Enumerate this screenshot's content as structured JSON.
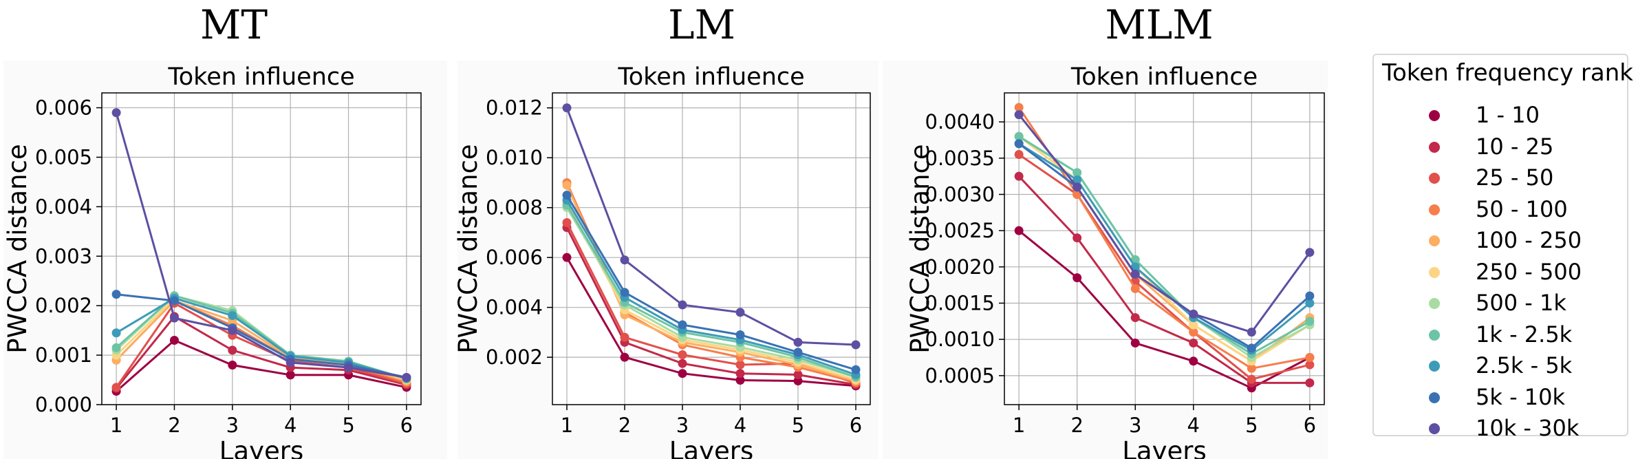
{
  "panel_titles": [
    "MT",
    "LM",
    "MLM"
  ],
  "legend": {
    "title": "Token frequency rank",
    "entries": [
      {
        "label": "1 - 10",
        "color": "#9e0142"
      },
      {
        "label": "10 - 25",
        "color": "#c2294a"
      },
      {
        "label": "25 - 50",
        "color": "#e1504a"
      },
      {
        "label": "50 - 100",
        "color": "#f67e4b"
      },
      {
        "label": "100 - 250",
        "color": "#fdae61"
      },
      {
        "label": "250 - 500",
        "color": "#fcd584"
      },
      {
        "label": "500 - 1k",
        "color": "#a8dca2"
      },
      {
        "label": "1k - 2.5k",
        "color": "#6cc4a4"
      },
      {
        "label": "2.5k - 5k",
        "color": "#3d9bb8"
      },
      {
        "label": "5k - 10k",
        "color": "#3a71b3"
      },
      {
        "label": "10k - 30k",
        "color": "#5e4fa2"
      }
    ]
  },
  "chart_data": [
    {
      "type": "line",
      "title": "Token influence",
      "xlabel": "Layers",
      "ylabel": "PWCCA distance",
      "x": [
        1,
        2,
        3,
        4,
        5,
        6
      ],
      "xlim": [
        0.75,
        6.25
      ],
      "ylim": [
        0,
        0.0063
      ],
      "yticks": [
        "0.000",
        "0.001",
        "0.002",
        "0.003",
        "0.004",
        "0.005",
        "0.006"
      ],
      "ytick_values": [
        0,
        0.001,
        0.002,
        0.003,
        0.004,
        0.005,
        0.006
      ],
      "grid": true,
      "series": [
        {
          "name": "1 - 10",
          "values": [
            0.00027,
            0.0013,
            0.0008,
            0.0006,
            0.0006,
            0.00035
          ]
        },
        {
          "name": "10 - 25",
          "values": [
            0.00033,
            0.00178,
            0.0011,
            0.00075,
            0.0007,
            0.0004
          ]
        },
        {
          "name": "25 - 50",
          "values": [
            0.00035,
            0.00205,
            0.0014,
            0.00088,
            0.00075,
            0.00042
          ]
        },
        {
          "name": "50 - 100",
          "values": [
            0.0009,
            0.0021,
            0.0016,
            0.00092,
            0.0008,
            0.00045
          ]
        },
        {
          "name": "100 - 250",
          "values": [
            0.0009,
            0.0021,
            0.0017,
            0.00095,
            0.00083,
            0.00048
          ]
        },
        {
          "name": "250 - 500",
          "values": [
            0.001,
            0.00215,
            0.0018,
            0.00098,
            0.00085,
            0.0005
          ]
        },
        {
          "name": "500 - 1k",
          "values": [
            0.0011,
            0.0022,
            0.0019,
            0.001,
            0.00088,
            0.00052
          ]
        },
        {
          "name": "1k - 2.5k",
          "values": [
            0.00115,
            0.0022,
            0.00185,
            0.001,
            0.00087,
            0.00052
          ]
        },
        {
          "name": "2.5k - 5k",
          "values": [
            0.00145,
            0.00215,
            0.0018,
            0.00098,
            0.00085,
            0.00053
          ]
        },
        {
          "name": "5k - 10k",
          "values": [
            0.00223,
            0.0021,
            0.00155,
            0.00092,
            0.0008,
            0.00055
          ]
        },
        {
          "name": "10k - 30k",
          "values": [
            0.0059,
            0.00175,
            0.0015,
            0.00085,
            0.00075,
            0.00055
          ]
        }
      ]
    },
    {
      "type": "line",
      "title": "Token influence",
      "xlabel": "Layers",
      "ylabel": "PWCCA distance",
      "x": [
        1,
        2,
        3,
        4,
        5,
        6
      ],
      "xlim": [
        0.75,
        6.25
      ],
      "ylim": [
        0.0001,
        0.0126
      ],
      "yticks": [
        "0.002",
        "0.004",
        "0.006",
        "0.008",
        "0.010",
        "0.012"
      ],
      "ytick_values": [
        0.002,
        0.004,
        0.006,
        0.008,
        0.01,
        0.012
      ],
      "grid": true,
      "series": [
        {
          "name": "1 - 10",
          "values": [
            0.006,
            0.002,
            0.00135,
            0.00108,
            0.00105,
            0.00085
          ]
        },
        {
          "name": "10 - 25",
          "values": [
            0.0072,
            0.0026,
            0.00175,
            0.00135,
            0.0013,
            0.0009
          ]
        },
        {
          "name": "25 - 50",
          "values": [
            0.0074,
            0.0028,
            0.0021,
            0.0017,
            0.00175,
            0.00095
          ]
        },
        {
          "name": "50 - 100",
          "values": [
            0.009,
            0.0038,
            0.0025,
            0.002,
            0.0016,
            0.001
          ]
        },
        {
          "name": "100 - 250",
          "values": [
            0.0089,
            0.0037,
            0.0026,
            0.0022,
            0.0017,
            0.00105
          ]
        },
        {
          "name": "250 - 500",
          "values": [
            0.0082,
            0.0039,
            0.0027,
            0.0023,
            0.0018,
            0.0011
          ]
        },
        {
          "name": "500 - 1k",
          "values": [
            0.008,
            0.0041,
            0.0028,
            0.0024,
            0.0019,
            0.0012
          ]
        },
        {
          "name": "1k - 2.5k",
          "values": [
            0.0081,
            0.0042,
            0.003,
            0.0026,
            0.002,
            0.0012
          ]
        },
        {
          "name": "2.5k - 5k",
          "values": [
            0.0083,
            0.0044,
            0.0031,
            0.0027,
            0.0021,
            0.0013
          ]
        },
        {
          "name": "5k - 10k",
          "values": [
            0.0085,
            0.0046,
            0.0033,
            0.0029,
            0.0022,
            0.0015
          ]
        },
        {
          "name": "10k - 30k",
          "values": [
            0.012,
            0.0059,
            0.0041,
            0.0038,
            0.0026,
            0.0025
          ]
        }
      ]
    },
    {
      "type": "line",
      "title": "Token influence",
      "xlabel": "Layers",
      "ylabel": "PWCCA distance",
      "x": [
        1,
        2,
        3,
        4,
        5,
        6
      ],
      "xlim": [
        0.75,
        6.25
      ],
      "ylim": [
        0.0001,
        0.0044
      ],
      "yticks": [
        "0.0005",
        "0.0010",
        "0.0015",
        "0.0020",
        "0.0025",
        "0.0030",
        "0.0035",
        "0.0040"
      ],
      "ytick_values": [
        0.0005,
        0.001,
        0.0015,
        0.002,
        0.0025,
        0.003,
        0.0035,
        0.004
      ],
      "grid": true,
      "series": [
        {
          "name": "1 - 10",
          "values": [
            0.0025,
            0.00185,
            0.00095,
            0.0007,
            0.00033,
            0.00075
          ]
        },
        {
          "name": "10 - 25",
          "values": [
            0.00325,
            0.0024,
            0.0013,
            0.00095,
            0.0004,
            0.0004
          ]
        },
        {
          "name": "25 - 50",
          "values": [
            0.00355,
            0.003,
            0.0018,
            0.0011,
            0.00045,
            0.00065
          ]
        },
        {
          "name": "50 - 100",
          "values": [
            0.0042,
            0.003,
            0.0017,
            0.0011,
            0.0006,
            0.00075
          ]
        },
        {
          "name": "100 - 250",
          "values": [
            0.0041,
            0.0031,
            0.0019,
            0.0012,
            0.0007,
            0.0013
          ]
        },
        {
          "name": "250 - 500",
          "values": [
            0.0038,
            0.0032,
            0.002,
            0.0012,
            0.0007,
            0.0012
          ]
        },
        {
          "name": "500 - 1k",
          "values": [
            0.0038,
            0.0033,
            0.0021,
            0.0013,
            0.00075,
            0.0012
          ]
        },
        {
          "name": "1k - 2.5k",
          "values": [
            0.0038,
            0.0033,
            0.0021,
            0.0013,
            0.0008,
            0.00125
          ]
        },
        {
          "name": "2.5k - 5k",
          "values": [
            0.0037,
            0.0032,
            0.002,
            0.0013,
            0.00085,
            0.0015
          ]
        },
        {
          "name": "5k - 10k",
          "values": [
            0.0037,
            0.0031,
            0.0019,
            0.00135,
            0.00088,
            0.0016
          ]
        },
        {
          "name": "10k - 30k",
          "values": [
            0.0041,
            0.0031,
            0.0019,
            0.00135,
            0.0011,
            0.0022
          ]
        }
      ]
    }
  ]
}
